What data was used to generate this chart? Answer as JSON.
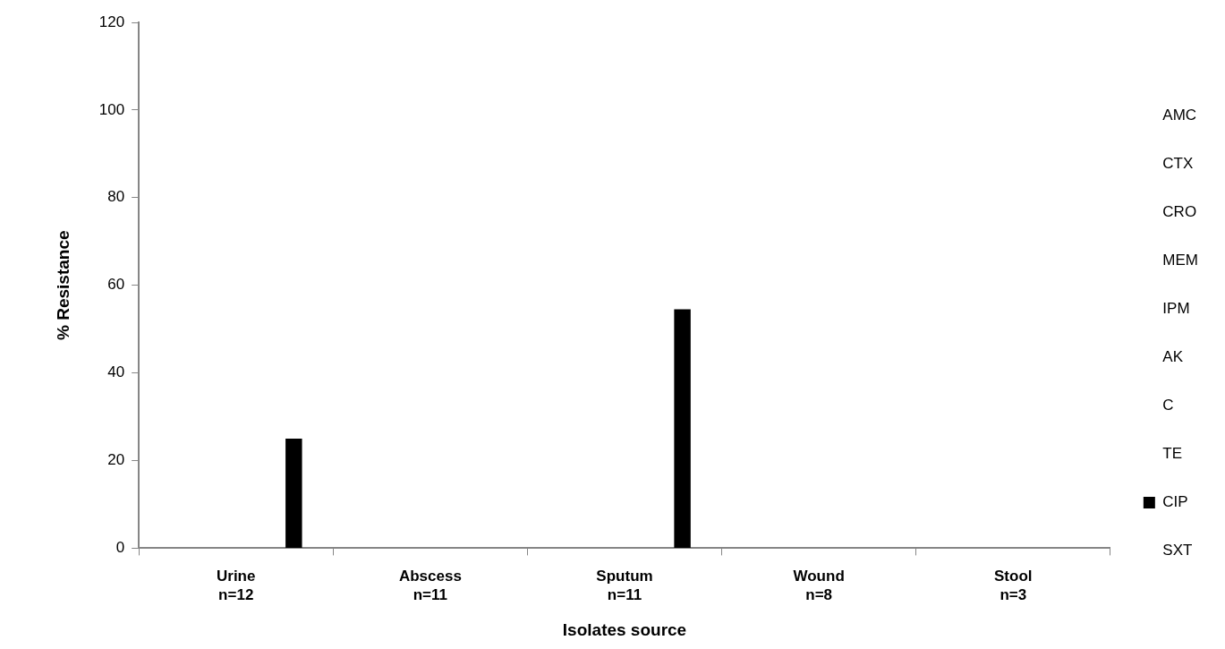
{
  "chart_data": {
    "type": "bar",
    "xlabel": "Isolates source",
    "ylabel": "% Resistance",
    "categories": [
      "Urine\nn=12",
      "Abscess\nn=11",
      "Sputum\nn=11",
      "Wound\nn=8",
      "Stool\nn=3"
    ],
    "series": [
      {
        "name": "AMC",
        "values": [
          0,
          0,
          0,
          0,
          0
        ]
      },
      {
        "name": "CTX",
        "values": [
          0,
          0,
          0,
          0,
          0
        ]
      },
      {
        "name": "CRO",
        "values": [
          0,
          0,
          0,
          0,
          0
        ]
      },
      {
        "name": "MEM",
        "values": [
          0,
          0,
          0,
          0,
          0
        ]
      },
      {
        "name": "IPM",
        "values": [
          0,
          0,
          0,
          0,
          0
        ]
      },
      {
        "name": "AK",
        "values": [
          0,
          0,
          0,
          0,
          0
        ]
      },
      {
        "name": "C",
        "values": [
          0,
          0,
          0,
          0,
          0
        ]
      },
      {
        "name": "TE",
        "values": [
          0,
          0,
          0,
          0,
          0
        ]
      },
      {
        "name": "CIP",
        "color": "#000000",
        "values": [
          25,
          0,
          54.5,
          0,
          0
        ]
      },
      {
        "name": "SXT",
        "values": [
          0,
          0,
          0,
          0,
          0
        ]
      }
    ],
    "ylim": [
      0,
      120
    ],
    "yticks": [
      0,
      20,
      40,
      60,
      80,
      100,
      120
    ],
    "grid": false,
    "legend": "right"
  }
}
